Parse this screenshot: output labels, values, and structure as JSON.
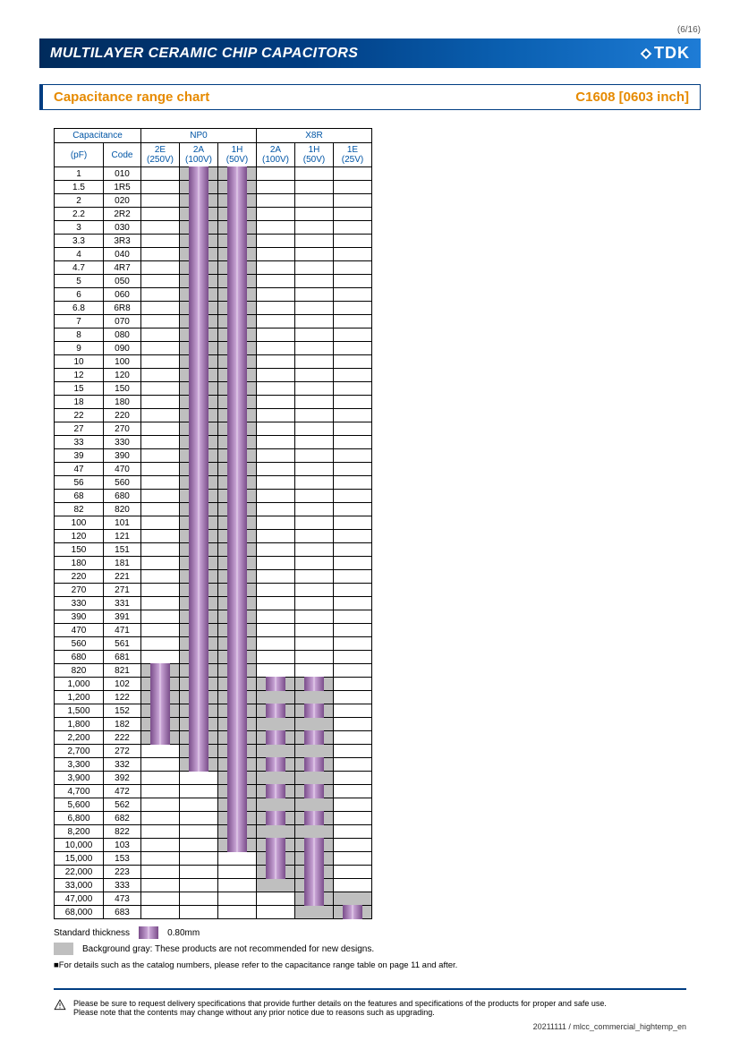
{
  "page_number": "(6/16)",
  "title": "MULTILAYER CERAMIC CHIP CAPACITORS",
  "brand": "TDK",
  "section_title": "Capacitance range chart",
  "part_number": "C1608 [0603 inch]",
  "headers": {
    "cap": "Capacitance",
    "pF": "(pF)",
    "code": "Code",
    "groups": [
      {
        "name": "NP0",
        "cols": [
          {
            "label": "2E",
            "volt": "(250V)"
          },
          {
            "label": "2A",
            "volt": "(100V)"
          },
          {
            "label": "1H",
            "volt": "(50V)"
          }
        ]
      },
      {
        "name": "X8R",
        "cols": [
          {
            "label": "2A",
            "volt": "(100V)"
          },
          {
            "label": "1H",
            "volt": "(50V)"
          },
          {
            "label": "1E",
            "volt": "(25V)"
          }
        ]
      }
    ]
  },
  "legend": {
    "std_thick_label": "Standard thickness",
    "std_thick_value": "0.80mm",
    "gray_text": "Background gray: These products are not recommended for new designs.",
    "note": "■For details such as the catalog numbers, please refer to the capacitance range table on page 11 and after."
  },
  "caution": {
    "line1": "Please be sure to request delivery specifications that provide further details on the features and specifications of the products for proper and safe use.",
    "line2": "Please note that the contents may change without any prior notice due to reasons such as upgrading."
  },
  "footer": "20211111 / mlcc_commercial_hightemp_en",
  "colors": {
    "blue_dark": "#003d82",
    "orange": "#e68a00",
    "bar_purple": "#9b6fae",
    "gray": "#bfbfbf"
  },
  "rows": [
    {
      "pF": "1",
      "code": "010",
      "cells": [
        "",
        "PG",
        "PG",
        "",
        "",
        ""
      ]
    },
    {
      "pF": "1.5",
      "code": "1R5",
      "cells": [
        "",
        "PG",
        "PG",
        "",
        "",
        ""
      ]
    },
    {
      "pF": "2",
      "code": "020",
      "cells": [
        "",
        "PG",
        "PG",
        "",
        "",
        ""
      ]
    },
    {
      "pF": "2.2",
      "code": "2R2",
      "cells": [
        "",
        "PG",
        "PG",
        "",
        "",
        ""
      ]
    },
    {
      "pF": "3",
      "code": "030",
      "cells": [
        "",
        "PG",
        "PG",
        "",
        "",
        ""
      ]
    },
    {
      "pF": "3.3",
      "code": "3R3",
      "cells": [
        "",
        "PG",
        "PG",
        "",
        "",
        ""
      ]
    },
    {
      "pF": "4",
      "code": "040",
      "cells": [
        "",
        "PG",
        "PG",
        "",
        "",
        ""
      ]
    },
    {
      "pF": "4.7",
      "code": "4R7",
      "cells": [
        "",
        "PG",
        "PG",
        "",
        "",
        ""
      ]
    },
    {
      "pF": "5",
      "code": "050",
      "cells": [
        "",
        "PG",
        "PG",
        "",
        "",
        ""
      ]
    },
    {
      "pF": "6",
      "code": "060",
      "cells": [
        "",
        "PG",
        "PG",
        "",
        "",
        ""
      ]
    },
    {
      "pF": "6.8",
      "code": "6R8",
      "cells": [
        "",
        "PG",
        "PG",
        "",
        "",
        ""
      ]
    },
    {
      "pF": "7",
      "code": "070",
      "cells": [
        "",
        "PG",
        "PG",
        "",
        "",
        ""
      ]
    },
    {
      "pF": "8",
      "code": "080",
      "cells": [
        "",
        "PG",
        "PG",
        "",
        "",
        ""
      ]
    },
    {
      "pF": "9",
      "code": "090",
      "cells": [
        "",
        "PG",
        "PG",
        "",
        "",
        ""
      ]
    },
    {
      "pF": "10",
      "code": "100",
      "cells": [
        "",
        "PG",
        "PG",
        "",
        "",
        ""
      ]
    },
    {
      "pF": "12",
      "code": "120",
      "cells": [
        "",
        "PG",
        "PG",
        "",
        "",
        ""
      ]
    },
    {
      "pF": "15",
      "code": "150",
      "cells": [
        "",
        "PG",
        "PG",
        "",
        "",
        ""
      ]
    },
    {
      "pF": "18",
      "code": "180",
      "cells": [
        "",
        "PG",
        "PG",
        "",
        "",
        ""
      ]
    },
    {
      "pF": "22",
      "code": "220",
      "cells": [
        "",
        "PG",
        "PG",
        "",
        "",
        ""
      ]
    },
    {
      "pF": "27",
      "code": "270",
      "cells": [
        "",
        "PG",
        "PG",
        "",
        "",
        ""
      ]
    },
    {
      "pF": "33",
      "code": "330",
      "cells": [
        "",
        "PG",
        "PG",
        "",
        "",
        ""
      ]
    },
    {
      "pF": "39",
      "code": "390",
      "cells": [
        "",
        "PG",
        "PG",
        "",
        "",
        ""
      ]
    },
    {
      "pF": "47",
      "code": "470",
      "cells": [
        "",
        "PG",
        "PG",
        "",
        "",
        ""
      ]
    },
    {
      "pF": "56",
      "code": "560",
      "cells": [
        "",
        "PG",
        "PG",
        "",
        "",
        ""
      ]
    },
    {
      "pF": "68",
      "code": "680",
      "cells": [
        "",
        "PG",
        "PG",
        "",
        "",
        ""
      ]
    },
    {
      "pF": "82",
      "code": "820",
      "cells": [
        "",
        "PG",
        "PG",
        "",
        "",
        ""
      ]
    },
    {
      "pF": "100",
      "code": "101",
      "cells": [
        "",
        "PG",
        "PG",
        "",
        "",
        ""
      ]
    },
    {
      "pF": "120",
      "code": "121",
      "cells": [
        "",
        "PG",
        "PG",
        "",
        "",
        ""
      ]
    },
    {
      "pF": "150",
      "code": "151",
      "cells": [
        "",
        "PG",
        "PG",
        "",
        "",
        ""
      ]
    },
    {
      "pF": "180",
      "code": "181",
      "cells": [
        "",
        "PG",
        "PG",
        "",
        "",
        ""
      ]
    },
    {
      "pF": "220",
      "code": "221",
      "cells": [
        "",
        "PG",
        "PG",
        "",
        "",
        ""
      ]
    },
    {
      "pF": "270",
      "code": "271",
      "cells": [
        "",
        "PG",
        "PG",
        "",
        "",
        ""
      ]
    },
    {
      "pF": "330",
      "code": "331",
      "cells": [
        "",
        "PG",
        "PG",
        "",
        "",
        ""
      ]
    },
    {
      "pF": "390",
      "code": "391",
      "cells": [
        "",
        "PG",
        "PG",
        "",
        "",
        ""
      ]
    },
    {
      "pF": "470",
      "code": "471",
      "cells": [
        "",
        "PG",
        "PG",
        "",
        "",
        ""
      ]
    },
    {
      "pF": "560",
      "code": "561",
      "cells": [
        "",
        "PG",
        "PG",
        "",
        "",
        ""
      ]
    },
    {
      "pF": "680",
      "code": "681",
      "cells": [
        "",
        "PG",
        "PG",
        "",
        "",
        ""
      ]
    },
    {
      "pF": "820",
      "code": "821",
      "cells": [
        "PG",
        "PG",
        "PG",
        "",
        "",
        ""
      ]
    },
    {
      "pF": "1,000",
      "code": "102",
      "cells": [
        "PG",
        "PG",
        "PG",
        "PG",
        "PG",
        ""
      ]
    },
    {
      "pF": "1,200",
      "code": "122",
      "cells": [
        "PG",
        "PG",
        "PG",
        "G",
        "G",
        ""
      ]
    },
    {
      "pF": "1,500",
      "code": "152",
      "cells": [
        "PG",
        "PG",
        "PG",
        "PG",
        "PG",
        ""
      ]
    },
    {
      "pF": "1,800",
      "code": "182",
      "cells": [
        "PG",
        "PG",
        "PG",
        "G",
        "G",
        ""
      ]
    },
    {
      "pF": "2,200",
      "code": "222",
      "cells": [
        "PG",
        "PG",
        "PG",
        "PG",
        "PG",
        ""
      ]
    },
    {
      "pF": "2,700",
      "code": "272",
      "cells": [
        "",
        "PG",
        "PG",
        "G",
        "G",
        ""
      ]
    },
    {
      "pF": "3,300",
      "code": "332",
      "cells": [
        "",
        "PG",
        "PG",
        "PG",
        "PG",
        ""
      ]
    },
    {
      "pF": "3,900",
      "code": "392",
      "cells": [
        "",
        "",
        "PG",
        "G",
        "G",
        ""
      ]
    },
    {
      "pF": "4,700",
      "code": "472",
      "cells": [
        "",
        "",
        "PG",
        "PG",
        "PG",
        ""
      ]
    },
    {
      "pF": "5,600",
      "code": "562",
      "cells": [
        "",
        "",
        "PG",
        "G",
        "G",
        ""
      ]
    },
    {
      "pF": "6,800",
      "code": "682",
      "cells": [
        "",
        "",
        "PG",
        "PG",
        "PG",
        ""
      ]
    },
    {
      "pF": "8,200",
      "code": "822",
      "cells": [
        "",
        "",
        "PG",
        "G",
        "G",
        ""
      ]
    },
    {
      "pF": "10,000",
      "code": "103",
      "cells": [
        "",
        "",
        "PG",
        "PG",
        "PG",
        ""
      ]
    },
    {
      "pF": "15,000",
      "code": "153",
      "cells": [
        "",
        "",
        "",
        "PG",
        "PG",
        ""
      ]
    },
    {
      "pF": "22,000",
      "code": "223",
      "cells": [
        "",
        "",
        "",
        "PG",
        "PG",
        ""
      ]
    },
    {
      "pF": "33,000",
      "code": "333",
      "cells": [
        "",
        "",
        "",
        "G",
        "PG",
        ""
      ]
    },
    {
      "pF": "47,000",
      "code": "473",
      "cells": [
        "",
        "",
        "",
        "",
        "PG",
        "G"
      ]
    },
    {
      "pF": "68,000",
      "code": "683",
      "cells": [
        "",
        "",
        "",
        "",
        "G",
        "PG"
      ]
    }
  ]
}
